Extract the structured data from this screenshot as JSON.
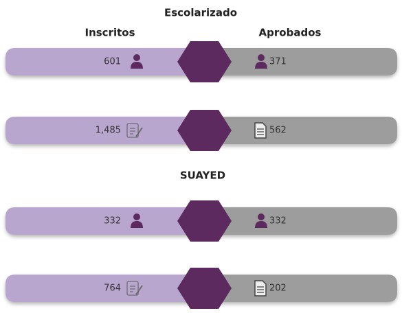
{
  "sections": [
    {
      "title": "Escolarizado",
      "left_header": "Inscritos",
      "right_header": "Aprobados",
      "rows": [
        {
          "left": "601",
          "right": "371"
        },
        {
          "left": "1,485",
          "right": "562"
        }
      ]
    },
    {
      "title": "SUAYED",
      "rows": [
        {
          "left": "332",
          "right": "332"
        },
        {
          "left": "764",
          "right": "202"
        }
      ]
    }
  ]
}
